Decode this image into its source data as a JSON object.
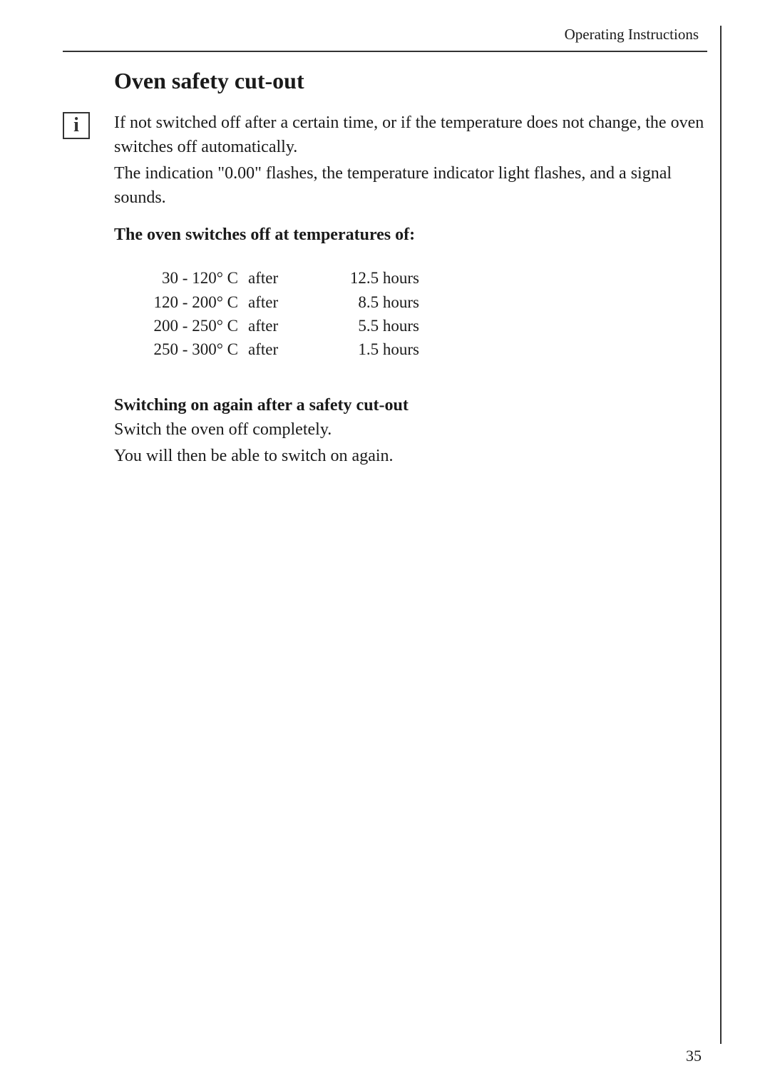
{
  "header": {
    "section": "Operating Instructions"
  },
  "title": "Oven safety cut-out",
  "intro_p1": "If not switched off after a certain time, or if the temperature does not change,  the oven switches off automatically.",
  "intro_p2": "The indication \"0.00\" flashes, the temperature indicator light flashes, and a signal sounds.",
  "sub1": "The oven switches off at temperatures of:",
  "cutout_table": {
    "rows": [
      {
        "temp": "30 - 120° C",
        "after": "after",
        "hours": "12.5 hours"
      },
      {
        "temp": "120 - 200° C",
        "after": "after",
        "hours": "8.5 hours"
      },
      {
        "temp": "200 - 250° C",
        "after": "after",
        "hours": "5.5 hours"
      },
      {
        "temp": "250 - 300° C",
        "after": "after",
        "hours": "1.5 hours"
      }
    ]
  },
  "sub2": "Switching on again after a safety cut-out",
  "restart_p1": "Switch the oven off completely.",
  "restart_p2": "You will then be able to switch on again.",
  "page_number": "35",
  "icon": {
    "glyph": "i"
  },
  "style": {
    "font_body_size": 24,
    "font_title_size": 32,
    "text_color": "#1a1a1a",
    "border_color": "#333333",
    "background": "#ffffff"
  }
}
